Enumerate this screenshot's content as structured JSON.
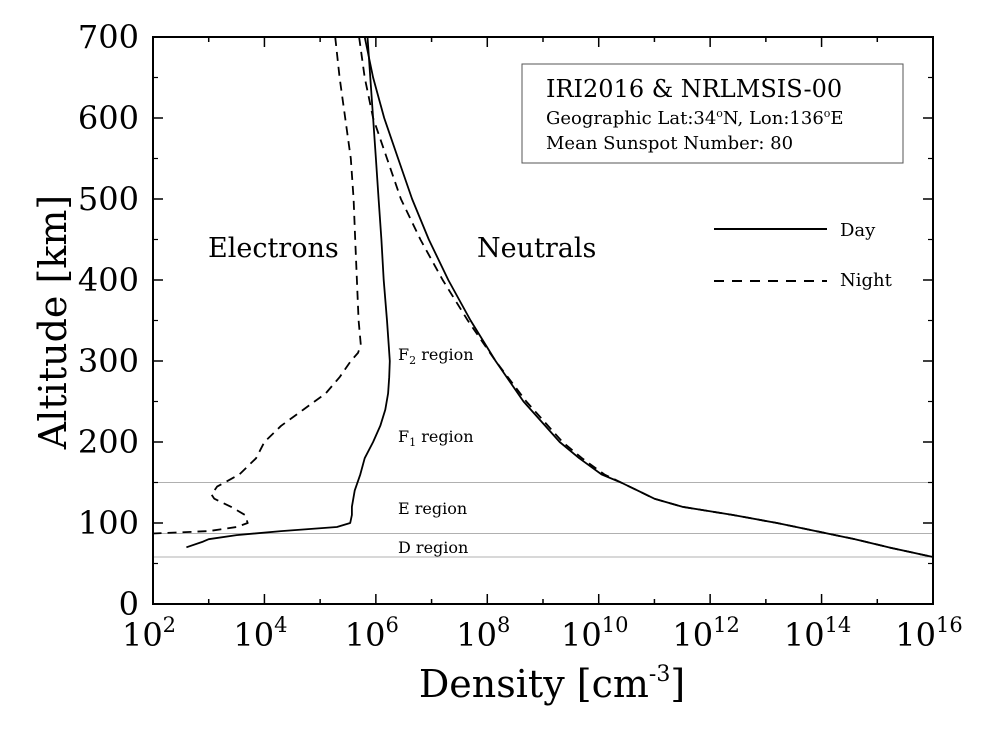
{
  "chart_data": {
    "type": "line",
    "xlabel": "Density [cm",
    "xlabel_sup": "-3",
    "xlabel_end": "]",
    "ylabel": "Altitude [km]",
    "x_scale": "log",
    "xlim_exponent": [
      2,
      16
    ],
    "ylim": [
      0,
      700
    ],
    "x_ticks": [
      {
        "base": "10",
        "exp": "2",
        "value_exp": 2
      },
      {
        "base": "10",
        "exp": "4",
        "value_exp": 4
      },
      {
        "base": "10",
        "exp": "6",
        "value_exp": 6
      },
      {
        "base": "10",
        "exp": "8",
        "value_exp": 8
      },
      {
        "base": "10",
        "exp": "10",
        "value_exp": 10
      },
      {
        "base": "10",
        "exp": "12",
        "value_exp": 12
      },
      {
        "base": "10",
        "exp": "14",
        "value_exp": 14
      },
      {
        "base": "10",
        "exp": "16",
        "value_exp": 16
      }
    ],
    "y_ticks": [
      "0",
      "100",
      "200",
      "300",
      "400",
      "500",
      "600",
      "700"
    ],
    "info_box": {
      "line1": "IRI2016 & NRLMSIS-00",
      "line2_a": "Geographic Lat:34",
      "line2_deg1": "o",
      "line2_b": "N, Lon:136",
      "line2_deg2": "o",
      "line2_c": "E",
      "line3": "Mean Sunspot Number: 80"
    },
    "legend": {
      "placement": "right",
      "entries": [
        {
          "label": "Day",
          "style": "solid"
        },
        {
          "label": "Night",
          "style": "dashed"
        }
      ]
    },
    "annotations": {
      "electrons": "Electrons",
      "neutrals": "Neutrals",
      "f2_main": "F",
      "f2_sub": "2",
      "f2_rest": " region",
      "f1_main": "F",
      "f1_sub": "1",
      "f1_rest": " region",
      "e_region": "E region",
      "d_region": "D region"
    },
    "region_boundaries_km": [
      150,
      87,
      58
    ],
    "series": [
      {
        "group": "electrons",
        "style": "solid",
        "points": [
          [
            700,
            5.85
          ],
          [
            650,
            5.9
          ],
          [
            600,
            5.95
          ],
          [
            550,
            6.0
          ],
          [
            500,
            6.05
          ],
          [
            450,
            6.1
          ],
          [
            400,
            6.14
          ],
          [
            350,
            6.2
          ],
          [
            320,
            6.23
          ],
          [
            300,
            6.25
          ],
          [
            280,
            6.24
          ],
          [
            260,
            6.22
          ],
          [
            240,
            6.17
          ],
          [
            220,
            6.08
          ],
          [
            200,
            5.95
          ],
          [
            180,
            5.8
          ],
          [
            160,
            5.72
          ],
          [
            140,
            5.62
          ],
          [
            120,
            5.57
          ],
          [
            110,
            5.57
          ],
          [
            100,
            5.54
          ],
          [
            95,
            5.3
          ],
          [
            90,
            4.3
          ],
          [
            85,
            3.5
          ],
          [
            80,
            3.0
          ],
          [
            77,
            2.9
          ],
          [
            70,
            2.6
          ]
        ]
      },
      {
        "group": "electrons",
        "style": "dashed",
        "points": [
          [
            700,
            5.27
          ],
          [
            650,
            5.35
          ],
          [
            600,
            5.45
          ],
          [
            550,
            5.55
          ],
          [
            500,
            5.6
          ],
          [
            450,
            5.63
          ],
          [
            400,
            5.66
          ],
          [
            350,
            5.69
          ],
          [
            320,
            5.73
          ],
          [
            310,
            5.68
          ],
          [
            300,
            5.55
          ],
          [
            280,
            5.35
          ],
          [
            260,
            5.1
          ],
          [
            240,
            4.7
          ],
          [
            220,
            4.3
          ],
          [
            200,
            4.0
          ],
          [
            180,
            3.85
          ],
          [
            160,
            3.55
          ],
          [
            145,
            3.15
          ],
          [
            135,
            3.05
          ],
          [
            130,
            3.1
          ],
          [
            120,
            3.4
          ],
          [
            110,
            3.65
          ],
          [
            100,
            3.7
          ],
          [
            95,
            3.5
          ],
          [
            90,
            3.0
          ],
          [
            87,
            2.0
          ]
        ]
      },
      {
        "group": "neutrals",
        "style": "solid",
        "points": [
          [
            700,
            5.8
          ],
          [
            650,
            5.95
          ],
          [
            600,
            6.15
          ],
          [
            550,
            6.4
          ],
          [
            500,
            6.65
          ],
          [
            450,
            6.95
          ],
          [
            400,
            7.3
          ],
          [
            350,
            7.7
          ],
          [
            300,
            8.15
          ],
          [
            250,
            8.65
          ],
          [
            200,
            9.3
          ],
          [
            180,
            9.65
          ],
          [
            160,
            10.05
          ],
          [
            150,
            10.4
          ],
          [
            140,
            10.7
          ],
          [
            130,
            11.0
          ],
          [
            120,
            11.5
          ],
          [
            110,
            12.4
          ],
          [
            100,
            13.2
          ],
          [
            90,
            13.9
          ],
          [
            80,
            14.6
          ],
          [
            70,
            15.2
          ],
          [
            58,
            16.0
          ]
        ]
      },
      {
        "group": "neutrals",
        "style": "dashed",
        "points": [
          [
            700,
            5.7
          ],
          [
            650,
            5.8
          ],
          [
            600,
            5.95
          ],
          [
            550,
            6.2
          ],
          [
            500,
            6.45
          ],
          [
            450,
            6.8
          ],
          [
            400,
            7.2
          ],
          [
            350,
            7.65
          ],
          [
            300,
            8.15
          ],
          [
            250,
            8.7
          ],
          [
            200,
            9.35
          ],
          [
            180,
            9.7
          ],
          [
            160,
            10.1
          ],
          [
            150,
            10.4
          ],
          [
            140,
            10.7
          ],
          [
            130,
            11.0
          ],
          [
            120,
            11.5
          ],
          [
            110,
            12.4
          ],
          [
            100,
            13.2
          ],
          [
            90,
            13.9
          ],
          [
            80,
            14.6
          ],
          [
            70,
            15.2
          ],
          [
            58,
            16.0
          ]
        ]
      }
    ]
  }
}
